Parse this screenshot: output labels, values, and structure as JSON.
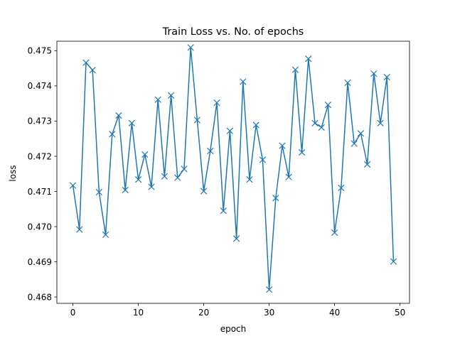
{
  "chart_data": {
    "type": "line",
    "title": "Train Loss vs. No. of epochs",
    "xlabel": "epoch",
    "ylabel": "loss",
    "xlim": [
      -2.45,
      51.45
    ],
    "ylim": [
      0.46782,
      0.47527
    ],
    "xticks": [
      0,
      10,
      20,
      30,
      40,
      50
    ],
    "yticks": [
      0.468,
      0.469,
      0.47,
      0.471,
      0.472,
      0.473,
      0.474,
      0.475
    ],
    "ytick_labels": [
      "0.468",
      "0.469",
      "0.470",
      "0.471",
      "0.472",
      "0.473",
      "0.474",
      "0.475"
    ],
    "grid": false,
    "marker": "x",
    "color": "#1f77b4",
    "x": [
      0,
      1,
      2,
      3,
      4,
      5,
      6,
      7,
      8,
      9,
      10,
      11,
      12,
      13,
      14,
      15,
      16,
      17,
      18,
      19,
      20,
      21,
      22,
      23,
      24,
      25,
      26,
      27,
      28,
      29,
      30,
      31,
      32,
      33,
      34,
      35,
      36,
      37,
      38,
      39,
      40,
      41,
      42,
      43,
      44,
      45,
      46,
      47,
      48,
      49
    ],
    "y": [
      0.47117,
      0.46992,
      0.47466,
      0.47445,
      0.47098,
      0.46977,
      0.47263,
      0.47316,
      0.47104,
      0.47294,
      0.47134,
      0.47205,
      0.47113,
      0.47361,
      0.47143,
      0.47373,
      0.47139,
      0.47164,
      0.47509,
      0.47303,
      0.47101,
      0.47215,
      0.47352,
      0.47045,
      0.47272,
      0.46966,
      0.47412,
      0.47134,
      0.47289,
      0.4719,
      0.46821,
      0.47081,
      0.4723,
      0.47141,
      0.47446,
      0.47211,
      0.47477,
      0.47294,
      0.47282,
      0.47346,
      0.46983,
      0.4711,
      0.47409,
      0.47236,
      0.47265,
      0.47177,
      0.47435,
      0.47294,
      0.47425,
      0.46901
    ]
  }
}
